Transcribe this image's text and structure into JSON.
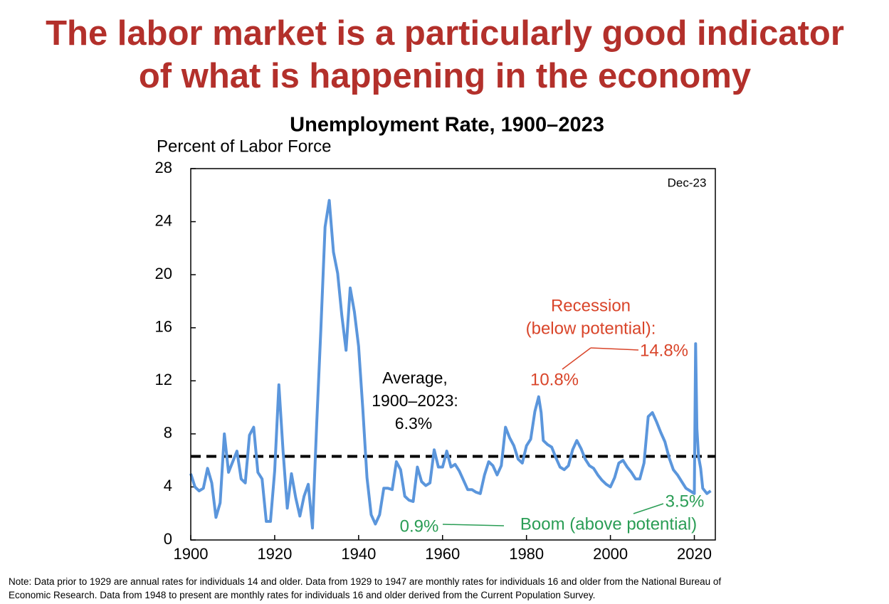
{
  "headline": [
    "The labor market is a particularly good indicator",
    "of what is happening in the economy"
  ],
  "chart_data": {
    "type": "line",
    "title": "Unemployment Rate, 1900–2023",
    "y_label": "Percent of Labor Force",
    "x": [
      1900,
      1901,
      1902,
      1903,
      1904,
      1905,
      1906,
      1907,
      1908,
      1909,
      1910,
      1911,
      1912,
      1913,
      1914,
      1915,
      1916,
      1917,
      1918,
      1919,
      1920,
      1921,
      1922,
      1923,
      1924,
      1925,
      1926,
      1927,
      1928,
      1929,
      1930,
      1931,
      1932,
      1933,
      1934,
      1935,
      1936,
      1937,
      1938,
      1939,
      1940,
      1941,
      1942,
      1943,
      1944,
      1945,
      1946,
      1947,
      1948,
      1949,
      1950,
      1951,
      1952,
      1953,
      1954,
      1955,
      1956,
      1957,
      1958,
      1959,
      1960,
      1961,
      1962,
      1963,
      1964,
      1965,
      1966,
      1967,
      1968,
      1969,
      1970,
      1971,
      1972,
      1973,
      1974,
      1975,
      1976,
      1977,
      1978,
      1979,
      1980,
      1981,
      1982,
      1982.9,
      1983.5,
      1984,
      1985,
      1986,
      1987,
      1988,
      1989,
      1990,
      1991,
      1992,
      1993,
      1994,
      1995,
      1996,
      1997,
      1998,
      1999,
      2000,
      2001,
      2002,
      2003,
      2004,
      2005,
      2006,
      2007,
      2008,
      2009,
      2010,
      2011,
      2012,
      2013,
      2014,
      2015,
      2016,
      2017,
      2018,
      2019,
      2020,
      2020.3,
      2020.6,
      2021,
      2021.5,
      2022,
      2023,
      2023.9
    ],
    "series": [
      {
        "name": "Unemployment Rate",
        "color": "#5b96dc",
        "values": [
          5.0,
          4.0,
          3.7,
          3.9,
          5.4,
          4.3,
          1.7,
          2.8,
          8.0,
          5.1,
          5.9,
          6.7,
          4.6,
          4.3,
          7.9,
          8.5,
          5.1,
          4.6,
          1.4,
          1.4,
          5.2,
          11.7,
          6.7,
          2.4,
          5.0,
          3.2,
          1.8,
          3.3,
          4.2,
          0.9,
          8.7,
          15.9,
          23.6,
          25.6,
          21.7,
          20.1,
          16.9,
          14.3,
          19.0,
          17.2,
          14.6,
          9.9,
          4.7,
          1.9,
          1.2,
          1.9,
          3.9,
          3.9,
          3.8,
          5.9,
          5.3,
          3.3,
          3.0,
          2.9,
          5.5,
          4.4,
          4.1,
          4.3,
          6.8,
          5.5,
          5.5,
          6.7,
          5.5,
          5.7,
          5.2,
          4.5,
          3.8,
          3.8,
          3.6,
          3.5,
          4.9,
          5.9,
          5.6,
          4.9,
          5.6,
          8.5,
          7.7,
          7.1,
          6.1,
          5.8,
          7.1,
          7.6,
          9.7,
          10.8,
          9.6,
          7.5,
          7.2,
          7.0,
          6.2,
          5.5,
          5.3,
          5.6,
          6.8,
          7.5,
          6.9,
          6.1,
          5.6,
          5.4,
          4.9,
          4.5,
          4.2,
          4.0,
          4.7,
          5.8,
          6.0,
          5.5,
          5.1,
          4.6,
          4.6,
          5.8,
          9.3,
          9.6,
          8.9,
          8.1,
          7.4,
          6.2,
          5.3,
          4.9,
          4.4,
          3.9,
          3.7,
          3.5,
          14.8,
          8.4,
          6.3,
          5.4,
          3.9,
          3.5,
          3.7
        ]
      }
    ],
    "average": 6.3,
    "xlim": [
      1900,
      2025
    ],
    "ylim": [
      0,
      28
    ],
    "xticks": [
      1900,
      1920,
      1940,
      1960,
      1980,
      2000,
      2020
    ],
    "yticks": [
      0,
      4,
      8,
      12,
      16,
      20,
      24,
      28
    ],
    "annotations": [
      "Dec-23",
      "Average,",
      "1900–2023:",
      "6.3%",
      "Recession",
      "(below potential):",
      "10.8%",
      "14.8%",
      "3.5%",
      "0.9%",
      "Boom (above potential)"
    ]
  },
  "note": [
    "Note: Data prior to 1929 are annual rates for individuals 14 and older. Data from 1929 to 1947 are monthly rates for individuals 16 and older from the National Bureau of",
    "Economic Research. Data from 1948 to present are monthly rates for individuals 16 and older derived from the Current Population Survey."
  ]
}
